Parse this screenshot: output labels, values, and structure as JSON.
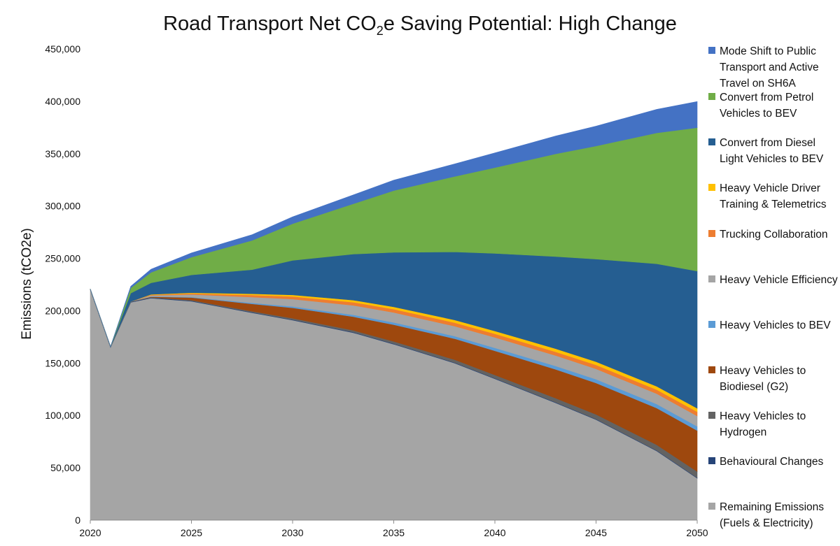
{
  "chart_data": {
    "type": "area",
    "stacked": true,
    "title": "Road Transport Net CO2e Saving Potential: High Change",
    "title_parts": {
      "pre": "Road Transport Net CO",
      "sub": "2",
      "post": "e Saving Potential: High Change"
    },
    "ylabel": "Emissions (tCO2e)",
    "xlabel": "",
    "xlim": [
      2020,
      2050
    ],
    "ylim": [
      0,
      450000
    ],
    "x_ticks": [
      2020,
      2025,
      2030,
      2035,
      2040,
      2045,
      2050
    ],
    "y_ticks": [
      0,
      50000,
      100000,
      150000,
      200000,
      250000,
      300000,
      350000,
      400000,
      450000
    ],
    "y_tick_labels": [
      "0",
      "50,000",
      "100,000",
      "150,000",
      "200,000",
      "250,000",
      "300,000",
      "350,000",
      "400,000",
      "450,000"
    ],
    "legend_position": "right",
    "x": [
      2020,
      2021,
      2022,
      2023,
      2025,
      2028,
      2030,
      2033,
      2035,
      2038,
      2040,
      2043,
      2045,
      2048,
      2050
    ],
    "series": [
      {
        "name": "Remaining Emissions (Fuels & Electricity)",
        "color": "#a5a5a5",
        "values": [
          220000,
          165000,
          208000,
          212000,
          209000,
          198000,
          191000,
          179000,
          168000,
          150000,
          135000,
          112000,
          96000,
          66000,
          40000
        ]
      },
      {
        "name": "Behavioural Changes",
        "color": "#264478",
        "values": [
          500,
          500,
          500,
          500,
          500,
          500,
          500,
          500,
          500,
          500,
          500,
          500,
          500,
          500,
          500
        ]
      },
      {
        "name": "Heavy Vehicles to Hydrogen",
        "color": "#636363",
        "values": [
          300,
          300,
          300,
          400,
          600,
          1000,
          1300,
          1800,
          2200,
          2800,
          3200,
          4000,
          4500,
          5500,
          6000
        ]
      },
      {
        "name": "Heavy Vehicles to Biodiesel (G2)",
        "color": "#9e480e",
        "values": [
          0,
          0,
          0,
          500,
          2500,
          7000,
          10000,
          13000,
          16000,
          20000,
          23000,
          27500,
          30000,
          35000,
          39000
        ]
      },
      {
        "name": "Heavy Vehicles to BEV",
        "color": "#5b9bd5",
        "values": [
          0,
          0,
          0,
          200,
          400,
          1000,
          1300,
          1800,
          2100,
          2500,
          2800,
          3200,
          3500,
          3800,
          4000
        ]
      },
      {
        "name": "Heavy Vehicle Efficiency",
        "color": "#a5a5a5",
        "values": [
          0,
          0,
          0,
          1000,
          2500,
          5500,
          7000,
          9000,
          9500,
          9500,
          10000,
          10000,
          10000,
          10000,
          10000
        ]
      },
      {
        "name": "Trucking Collaboration",
        "color": "#ed7d31",
        "values": [
          0,
          0,
          0,
          500,
          1000,
          2000,
          2500,
          3000,
          3200,
          3400,
          3500,
          3600,
          3700,
          3800,
          4000
        ]
      },
      {
        "name": "Heavy Vehicle Driver Training & Telemetrics",
        "color": "#ffc000",
        "values": [
          0,
          0,
          0,
          500,
          700,
          1200,
          1500,
          2000,
          2200,
          2500,
          2700,
          3000,
          3100,
          3200,
          3300
        ]
      },
      {
        "name": "Convert from Diesel Light Vehicles to BEV",
        "color": "#255e91",
        "values": [
          0,
          0,
          8000,
          11000,
          17000,
          23000,
          33000,
          44000,
          52000,
          65000,
          74000,
          88000,
          98000,
          117000,
          131000
        ]
      },
      {
        "name": "Convert from Petrol Vehicles to BEV",
        "color": "#70ad47",
        "values": [
          0,
          0,
          5000,
          10000,
          17000,
          28000,
          35000,
          48000,
          59000,
          72000,
          82000,
          98000,
          108000,
          125000,
          137000
        ]
      },
      {
        "name": "Mode Shift to Public Transport and Active Travel on SH6A",
        "color": "#4472c4",
        "values": [
          0,
          0,
          1500,
          3000,
          4000,
          5500,
          6500,
          8500,
          10000,
          12000,
          14000,
          17000,
          19000,
          22500,
          25000
        ]
      }
    ]
  },
  "legend": [
    {
      "label": "Mode Shift to Public Transport and Active Travel on SH6A",
      "color": "#4472c4"
    },
    {
      "label": "Convert from Petrol Vehicles to BEV",
      "color": "#70ad47"
    },
    {
      "label": "Convert from Diesel Light Vehicles to BEV",
      "color": "#255e91"
    },
    {
      "label": "Heavy Vehicle Driver Training & Telemetrics",
      "color": "#ffc000"
    },
    {
      "label": "Trucking Collaboration",
      "color": "#ed7d31"
    },
    {
      "label": "Heavy Vehicle Efficiency",
      "color": "#a5a5a5"
    },
    {
      "label": "Heavy Vehicles to BEV",
      "color": "#5b9bd5"
    },
    {
      "label": "Heavy Vehicles to Biodiesel (G2)",
      "color": "#9e480e"
    },
    {
      "label": "Heavy Vehicles to Hydrogen",
      "color": "#636363"
    },
    {
      "label": "Behavioural Changes",
      "color": "#264478"
    },
    {
      "label": "Remaining Emissions (Fuels & Electricity)",
      "color": "#a5a5a5"
    }
  ]
}
